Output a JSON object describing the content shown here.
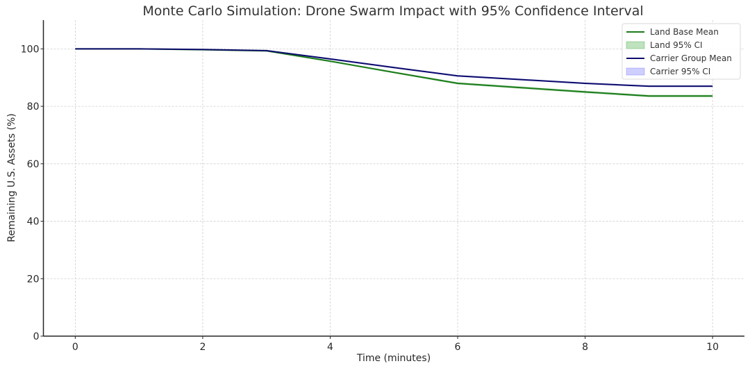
{
  "chart_data": {
    "type": "line",
    "title": "Monte Carlo Simulation: Drone Swarm Impact with 95% Confidence Interval",
    "xlabel": "Time (minutes)",
    "ylabel": "Remaining U.S. Assets (%)",
    "xlim": [
      -0.5,
      10.5
    ],
    "ylim": [
      0,
      110
    ],
    "xticks": [
      0,
      2,
      4,
      6,
      8,
      10
    ],
    "yticks": [
      0,
      20,
      40,
      60,
      80,
      100
    ],
    "grid": true,
    "legend_position": "top-right",
    "x": [
      0,
      1,
      2,
      3,
      4,
      5,
      6,
      7,
      8,
      9,
      10
    ],
    "series": [
      {
        "name": "Land Base Mean",
        "kind": "line",
        "color": "#1a7a1a",
        "values": [
          100,
          100,
          99.7,
          99.3,
          95.7,
          91.8,
          88.0,
          86.5,
          85.0,
          83.6,
          83.6
        ]
      },
      {
        "name": "Land 95% CI",
        "kind": "band",
        "color": "#2ca02c",
        "lower": [
          100,
          100,
          99.6,
          99.1,
          95.4,
          91.5,
          87.6,
          86.1,
          84.6,
          83.2,
          83.2
        ],
        "upper": [
          100,
          100,
          99.8,
          99.5,
          96.0,
          92.1,
          88.4,
          86.9,
          85.4,
          84.0,
          84.0
        ]
      },
      {
        "name": "Carrier Group Mean",
        "kind": "line",
        "color": "#0b0b6b",
        "values": [
          100,
          100,
          99.8,
          99.4,
          96.5,
          93.5,
          90.6,
          89.3,
          88.0,
          87.0,
          87.0
        ]
      },
      {
        "name": "Carrier 95% CI",
        "kind": "band",
        "color": "#6060ff",
        "lower": [
          100,
          100,
          99.7,
          99.2,
          96.2,
          93.2,
          90.3,
          89.0,
          87.7,
          86.7,
          86.7
        ],
        "upper": [
          100,
          100,
          99.9,
          99.6,
          96.8,
          93.8,
          90.9,
          89.6,
          88.3,
          87.3,
          87.3
        ]
      }
    ]
  }
}
